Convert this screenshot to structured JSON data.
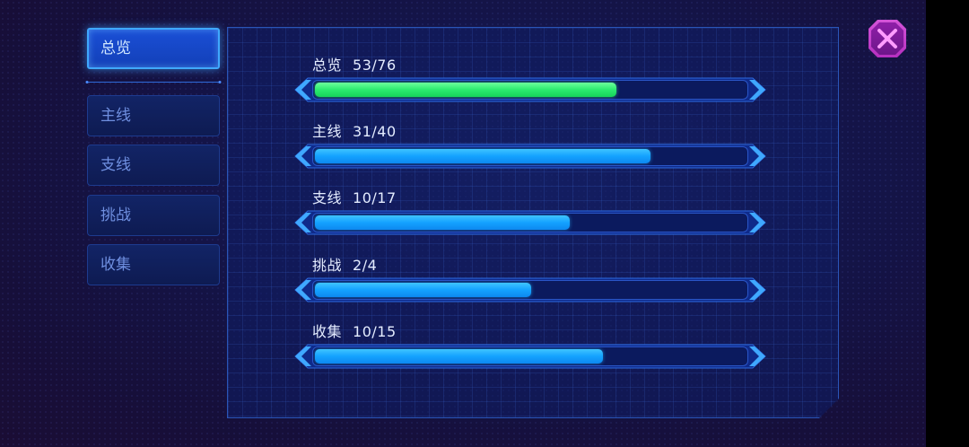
{
  "tabs": [
    {
      "label": "总览",
      "active": true
    },
    {
      "label": "主线",
      "active": false
    },
    {
      "label": "支线",
      "active": false
    },
    {
      "label": "挑战",
      "active": false
    },
    {
      "label": "收集",
      "active": false
    }
  ],
  "progress": [
    {
      "label": "总览",
      "count": "53/76",
      "done": 53,
      "total": 76,
      "color": "#2bea6f"
    },
    {
      "label": "主线",
      "count": "31/40",
      "done": 31,
      "total": 40,
      "color": "#14a2ff"
    },
    {
      "label": "支线",
      "count": "10/17",
      "done": 10,
      "total": 17,
      "color": "#14a2ff"
    },
    {
      "label": "挑战",
      "count": "2/4",
      "done": 2,
      "total": 4,
      "color": "#14a2ff"
    },
    {
      "label": "收集",
      "count": "10/15",
      "done": 10,
      "total": 15,
      "color": "#14a2ff"
    }
  ],
  "close_icon": "close-x-icon",
  "colors": {
    "accent": "#3fa8ff",
    "close": "#d454d8",
    "complete": "#2bea6f"
  }
}
